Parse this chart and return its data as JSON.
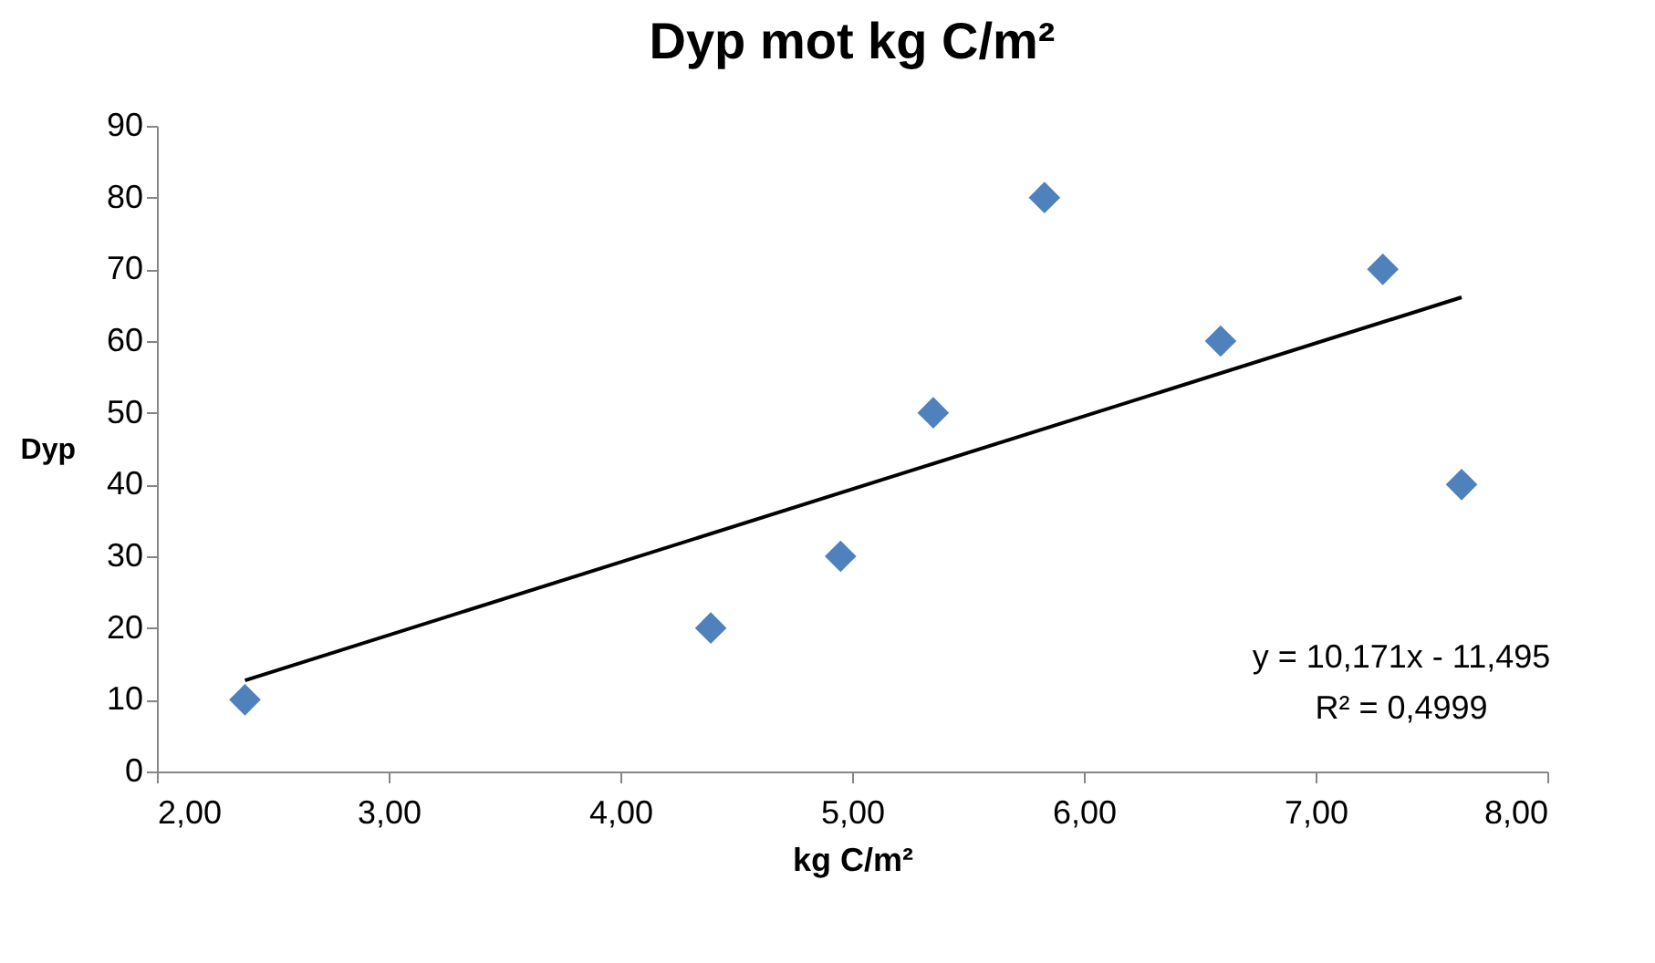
{
  "chart_data": {
    "type": "scatter",
    "title": "Dyp mot kg C/m²",
    "xlabel": "kg C/m²",
    "ylabel": "Dyp",
    "series": [
      {
        "color": "#4f81bd",
        "marker": "diamond",
        "x": [
          2.38,
          4.39,
          4.95,
          5.35,
          5.83,
          6.59,
          7.29,
          7.63
        ],
        "values": [
          10,
          20,
          30,
          50,
          80,
          60,
          70,
          40
        ]
      },
      {
        "type": "line",
        "color": "#000000",
        "marker": "none",
        "x": [
          2.38,
          7.63
        ],
        "values": [
          12.7,
          66.1
        ]
      }
    ],
    "xlim": [
      2,
      8
    ],
    "xticks": [
      {
        "value": 2,
        "label": "2,00"
      },
      {
        "value": 3,
        "label": "3,00"
      },
      {
        "value": 4,
        "label": "4,00"
      },
      {
        "value": 5,
        "label": "5,00"
      },
      {
        "value": 6,
        "label": "6,00"
      },
      {
        "value": 7,
        "label": "7,00"
      },
      {
        "value": 8,
        "label": "8,00"
      }
    ],
    "ylim": [
      0,
      90
    ],
    "yticks": [
      0,
      10,
      20,
      30,
      40,
      50,
      60,
      70,
      80,
      90
    ],
    "grid": false,
    "annotations": [
      "y = 10,171x - 11,495",
      "R² = 0,4999"
    ]
  }
}
